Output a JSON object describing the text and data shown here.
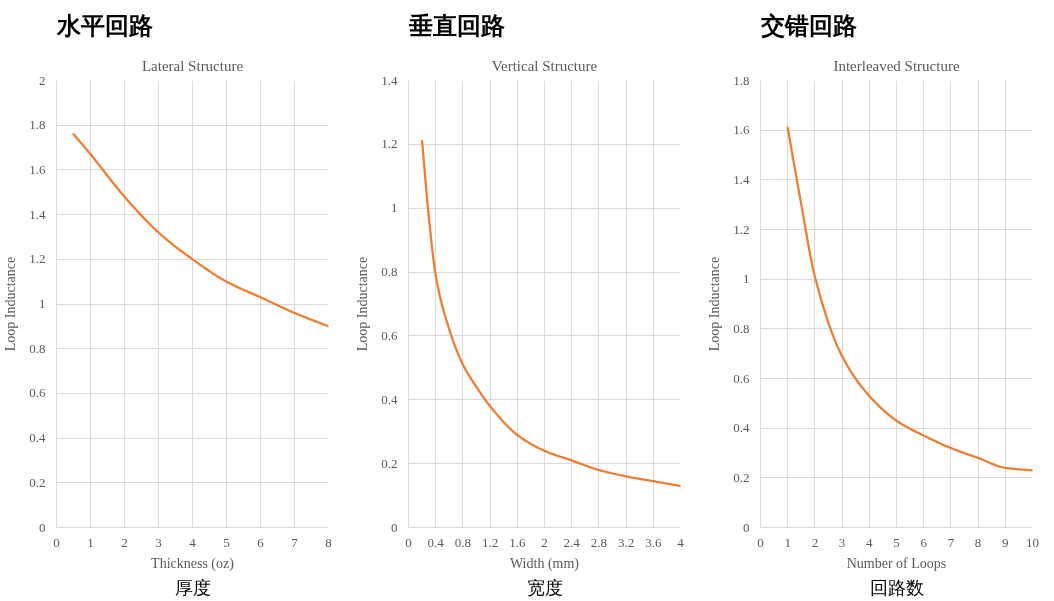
{
  "chart_data": [
    {
      "type": "line",
      "title": "水平回路",
      "subtitle": "Lateral Structure",
      "xlabel": "Thickness (oz)",
      "ylabel": "Loop Inductance",
      "annotations": [
        "厚度"
      ],
      "x": [
        0.5,
        1,
        2,
        3,
        4,
        5,
        6,
        7,
        8
      ],
      "series": [
        {
          "color": "#ed7d31",
          "values": [
            1.76,
            1.67,
            1.48,
            1.32,
            1.2,
            1.1,
            1.03,
            0.96,
            0.9
          ]
        }
      ],
      "xlim": [
        0,
        8
      ],
      "ylim": [
        0,
        2
      ],
      "xticks": [
        0,
        1,
        2,
        3,
        4,
        5,
        6,
        7,
        8
      ],
      "yticks": [
        0,
        0.2,
        0.4,
        0.6,
        0.8,
        1,
        1.2,
        1.4,
        1.6,
        1.8,
        2
      ],
      "grid": true
    },
    {
      "type": "line",
      "title": "垂直回路",
      "subtitle": "Vertical Structure",
      "xlabel": "Width (mm)",
      "ylabel": "Loop Inductance",
      "annotations": [
        "宽度"
      ],
      "x": [
        0.2,
        0.3,
        0.4,
        0.6,
        0.8,
        1,
        1.2,
        1.6,
        2,
        2.4,
        2.8,
        3.2,
        3.6,
        4
      ],
      "series": [
        {
          "color": "#ed7d31",
          "values": [
            1.21,
            0.97,
            0.79,
            0.62,
            0.51,
            0.44,
            0.38,
            0.29,
            0.24,
            0.21,
            0.18,
            0.16,
            0.145,
            0.13
          ]
        }
      ],
      "xlim": [
        0,
        4
      ],
      "ylim": [
        0,
        1.4
      ],
      "xticks": [
        0,
        0.4,
        0.8,
        1.2,
        1.6,
        2,
        2.4,
        2.8,
        3.2,
        3.6,
        4
      ],
      "yticks": [
        0,
        0.2,
        0.4,
        0.6,
        0.8,
        1,
        1.2,
        1.4
      ],
      "grid": true
    },
    {
      "type": "line",
      "title": "交错回路",
      "subtitle": "Interleaved Structure",
      "xlabel": "Number of Loops",
      "ylabel": "Loop Inductance",
      "annotations": [
        "回路数"
      ],
      "x": [
        1,
        1.5,
        2,
        3,
        4,
        5,
        6,
        7,
        8,
        9,
        10
      ],
      "series": [
        {
          "color": "#ed7d31",
          "values": [
            1.61,
            1.3,
            1.01,
            0.69,
            0.53,
            0.43,
            0.37,
            0.32,
            0.28,
            0.24,
            0.23
          ]
        }
      ],
      "xlim": [
        0,
        10
      ],
      "ylim": [
        0,
        1.8
      ],
      "xticks": [
        0,
        1,
        2,
        3,
        4,
        5,
        6,
        7,
        8,
        9,
        10
      ],
      "yticks": [
        0,
        0.2,
        0.4,
        0.6,
        0.8,
        1,
        1.2,
        1.4,
        1.6,
        1.8
      ],
      "grid": true
    }
  ]
}
